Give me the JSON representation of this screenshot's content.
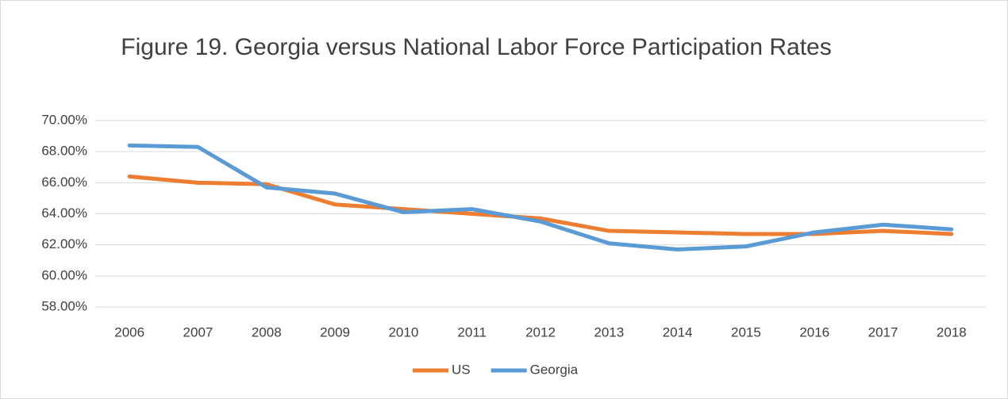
{
  "chart_data": {
    "type": "line",
    "title": "Figure 19. Georgia versus National Labor Force Participation Rates",
    "categories": [
      "2006",
      "2007",
      "2008",
      "2009",
      "2010",
      "2011",
      "2012",
      "2013",
      "2014",
      "2015",
      "2016",
      "2017",
      "2018"
    ],
    "series": [
      {
        "name": "US",
        "color": "#ed7d31",
        "values": [
          66.4,
          66.0,
          65.9,
          64.6,
          64.3,
          64.0,
          63.7,
          62.9,
          62.8,
          62.7,
          62.7,
          62.9,
          62.7
        ]
      },
      {
        "name": "Georgia",
        "color": "#5b9bd5",
        "values": [
          68.4,
          68.3,
          65.7,
          65.3,
          64.1,
          64.3,
          63.5,
          62.1,
          61.7,
          61.9,
          62.8,
          63.3,
          63.0
        ]
      }
    ],
    "ylim": [
      58,
      70
    ],
    "yticks": [
      {
        "value": 58,
        "label": "58.00%"
      },
      {
        "value": 60,
        "label": "60.00%"
      },
      {
        "value": 62,
        "label": "62.00%"
      },
      {
        "value": 64,
        "label": "64.00%"
      },
      {
        "value": 66,
        "label": "66.00%"
      },
      {
        "value": 68,
        "label": "68.00%"
      },
      {
        "value": 70,
        "label": "70.00%"
      }
    ],
    "grid": true,
    "legend": "bottom"
  }
}
